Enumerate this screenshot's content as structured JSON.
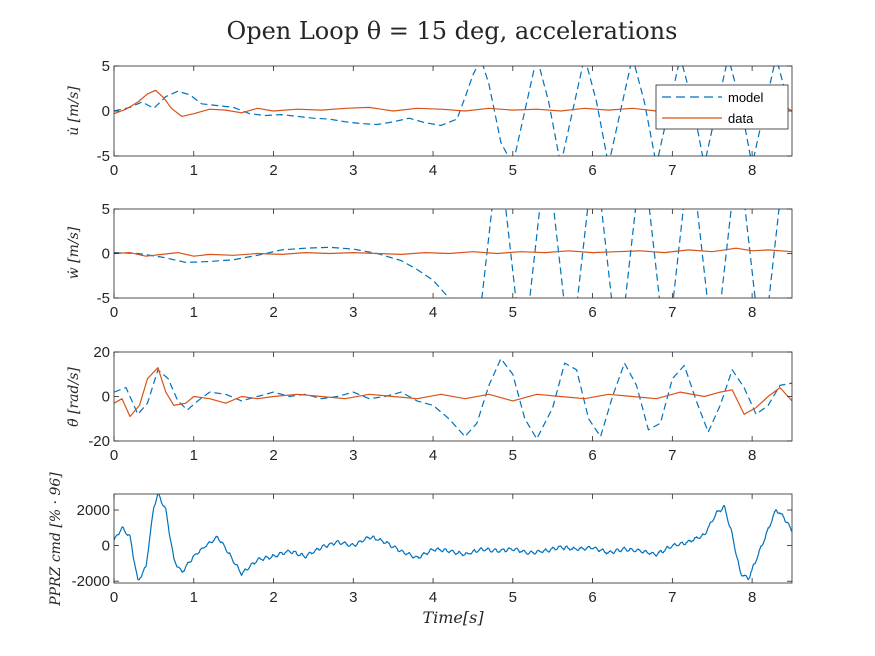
{
  "title": "Open Loop θ = 15 deg, accelerations",
  "colors": {
    "model": "#0072BD",
    "data": "#D95319",
    "cmd": "#0072BD",
    "axis": "#262626"
  },
  "chart_data": [
    {
      "type": "line",
      "ylabel": "u̇ [m/s]",
      "xlim": [
        0,
        8.5
      ],
      "ylim": [
        -5,
        5
      ],
      "xticks": [
        0,
        1,
        2,
        3,
        4,
        5,
        6,
        7,
        8
      ],
      "yticks": [
        -5,
        0,
        5
      ],
      "legend": {
        "position": "top-right",
        "entries": [
          "model",
          "data"
        ]
      },
      "series": [
        {
          "name": "model",
          "style": "dashed",
          "x": [
            0,
            0.2,
            0.35,
            0.5,
            0.65,
            0.8,
            0.95,
            1.1,
            1.3,
            1.5,
            1.7,
            1.9,
            2.1,
            2.3,
            2.5,
            2.7,
            2.9,
            3.1,
            3.3,
            3.5,
            3.7,
            3.9,
            4.1,
            4.3,
            4.4,
            4.5,
            4.6,
            4.7,
            4.85,
            5.0,
            5.15,
            5.3,
            5.45,
            5.6,
            5.75,
            5.9,
            6.05,
            6.2,
            6.35,
            6.5,
            6.65,
            6.8,
            6.95,
            7.1,
            7.25,
            7.4,
            7.55,
            7.7,
            7.85,
            8.0,
            8.15,
            8.3,
            8.45
          ],
          "y": [
            0,
            0.4,
            1.0,
            0.3,
            1.6,
            2.2,
            1.8,
            0.8,
            0.6,
            0.4,
            -0.3,
            -0.5,
            -0.4,
            -0.6,
            -0.8,
            -0.9,
            -1.2,
            -1.4,
            -1.5,
            -1.2,
            -0.8,
            -1.3,
            -1.6,
            -0.9,
            1.5,
            4.0,
            5.8,
            3.0,
            -3.5,
            -6.0,
            0.0,
            6.0,
            1.0,
            -6.0,
            0.0,
            6.0,
            1.0,
            -6.0,
            0.0,
            6.0,
            1.0,
            -6.0,
            0.0,
            6.0,
            1.0,
            -6.0,
            0.0,
            6.0,
            1.0,
            -6.0,
            0.0,
            6.0,
            1.0
          ]
        },
        {
          "name": "data",
          "style": "solid",
          "x": [
            0,
            0.15,
            0.3,
            0.42,
            0.52,
            0.62,
            0.72,
            0.85,
            1.0,
            1.2,
            1.4,
            1.6,
            1.8,
            2.0,
            2.3,
            2.6,
            2.9,
            3.2,
            3.5,
            3.8,
            4.1,
            4.4,
            4.7,
            5.0,
            5.3,
            5.6,
            5.9,
            6.2,
            6.5,
            6.8,
            7.1,
            7.4,
            7.7,
            8.0,
            8.2,
            8.35,
            8.5
          ],
          "y": [
            -0.3,
            0.2,
            1.0,
            1.9,
            2.3,
            1.5,
            0.3,
            -0.6,
            -0.3,
            0.2,
            0.1,
            -0.2,
            0.3,
            0.0,
            0.2,
            0.1,
            0.3,
            0.4,
            0.0,
            0.3,
            0.2,
            0.0,
            0.3,
            0.1,
            0.2,
            0.0,
            0.3,
            0.1,
            0.3,
            0.0,
            0.2,
            0.0,
            0.3,
            0.6,
            0.5,
            0.8,
            0.0
          ]
        }
      ]
    },
    {
      "type": "line",
      "ylabel": "ẇ [m/s]",
      "xlim": [
        0,
        8.5
      ],
      "ylim": [
        -5,
        5
      ],
      "xticks": [
        0,
        1,
        2,
        3,
        4,
        5,
        6,
        7,
        8
      ],
      "yticks": [
        -5,
        0,
        5
      ],
      "series": [
        {
          "name": "model",
          "style": "dashed",
          "x": [
            0,
            0.3,
            0.6,
            0.9,
            1.2,
            1.5,
            1.8,
            2.1,
            2.4,
            2.7,
            3.0,
            3.3,
            3.6,
            3.8,
            4.0,
            4.15,
            4.3,
            4.45,
            4.6,
            4.75,
            4.9,
            5.05,
            5.2,
            5.35,
            5.5,
            5.65,
            5.8,
            5.95,
            6.1,
            6.25,
            6.4,
            6.55,
            6.7,
            6.85,
            7.0,
            7.15,
            7.3,
            7.45,
            7.6,
            7.75,
            7.9,
            8.05,
            8.2,
            8.35,
            8.5
          ],
          "y": [
            0.1,
            0.0,
            -0.4,
            -1.0,
            -0.9,
            -0.7,
            -0.2,
            0.4,
            0.6,
            0.7,
            0.5,
            0.0,
            -0.8,
            -1.8,
            -3.0,
            -4.5,
            -6.0,
            -6.0,
            -6.0,
            6.0,
            6.0,
            -6.0,
            -6.0,
            6.0,
            6.0,
            -6.0,
            -6.0,
            6.0,
            6.0,
            -6.0,
            -6.0,
            6.0,
            6.0,
            -6.0,
            -6.0,
            6.0,
            6.0,
            -6.0,
            -6.0,
            6.0,
            6.0,
            -6.0,
            -6.0,
            6.0,
            6.0
          ]
        },
        {
          "name": "data",
          "style": "solid",
          "x": [
            0,
            0.2,
            0.4,
            0.6,
            0.8,
            1.0,
            1.2,
            1.5,
            1.8,
            2.1,
            2.4,
            2.7,
            3.0,
            3.3,
            3.6,
            3.9,
            4.2,
            4.5,
            4.8,
            5.1,
            5.4,
            5.7,
            6.0,
            6.3,
            6.6,
            6.9,
            7.2,
            7.5,
            7.8,
            8.0,
            8.2,
            8.5
          ],
          "y": [
            0.0,
            0.1,
            -0.3,
            -0.1,
            0.1,
            -0.3,
            -0.1,
            -0.2,
            0.0,
            -0.1,
            0.1,
            0.0,
            0.1,
            0.0,
            -0.1,
            0.1,
            0.0,
            0.2,
            0.0,
            0.2,
            0.1,
            0.3,
            0.1,
            0.2,
            0.3,
            0.1,
            0.4,
            0.2,
            0.6,
            0.3,
            0.4,
            0.2
          ]
        }
      ]
    },
    {
      "type": "line",
      "ylabel": "θ̈ [rad/s]",
      "xlim": [
        0,
        8.5
      ],
      "ylim": [
        -20,
        20
      ],
      "xticks": [
        0,
        1,
        2,
        3,
        4,
        5,
        6,
        7,
        8
      ],
      "yticks": [
        -20,
        0,
        20
      ],
      "series": [
        {
          "name": "model",
          "style": "dashed",
          "x": [
            0,
            0.15,
            0.3,
            0.42,
            0.55,
            0.68,
            0.8,
            0.92,
            1.05,
            1.2,
            1.4,
            1.6,
            1.8,
            2.0,
            2.2,
            2.4,
            2.6,
            2.8,
            3.0,
            3.2,
            3.4,
            3.6,
            3.8,
            4.0,
            4.2,
            4.4,
            4.55,
            4.7,
            4.85,
            5.0,
            5.15,
            5.3,
            5.5,
            5.65,
            5.8,
            5.95,
            6.1,
            6.25,
            6.4,
            6.55,
            6.7,
            6.85,
            7.0,
            7.15,
            7.3,
            7.45,
            7.6,
            7.75,
            7.9,
            8.05,
            8.2,
            8.35,
            8.5
          ],
          "y": [
            2,
            4,
            -8,
            -3,
            12,
            8,
            -2,
            -6,
            -2,
            2,
            1,
            -2,
            0,
            2,
            0,
            1,
            -1,
            0,
            2,
            -1,
            0,
            2,
            -2,
            -4,
            -10,
            -18,
            -12,
            5,
            17,
            10,
            -10,
            -19,
            -5,
            15,
            12,
            -10,
            -18,
            0,
            15,
            5,
            -15,
            -12,
            8,
            14,
            -2,
            -16,
            -4,
            12,
            4,
            -8,
            -4,
            5,
            6
          ]
        },
        {
          "name": "data",
          "style": "solid",
          "x": [
            0,
            0.1,
            0.2,
            0.32,
            0.42,
            0.55,
            0.65,
            0.75,
            0.9,
            1.0,
            1.2,
            1.4,
            1.6,
            1.8,
            2.0,
            2.3,
            2.6,
            2.9,
            3.2,
            3.5,
            3.8,
            4.1,
            4.4,
            4.7,
            5.0,
            5.3,
            5.6,
            5.9,
            6.2,
            6.5,
            6.8,
            7.1,
            7.4,
            7.6,
            7.75,
            7.9,
            8.05,
            8.2,
            8.35,
            8.5
          ],
          "y": [
            -3,
            -1,
            -9,
            -4,
            8,
            13,
            2,
            -4,
            -3,
            0,
            -1,
            -3,
            0,
            -1,
            0,
            1,
            0,
            -1,
            1,
            0,
            -1,
            1,
            -1,
            1,
            -2,
            1,
            0,
            -1,
            1,
            0,
            -1,
            2,
            0,
            2,
            3,
            -8,
            -5,
            0,
            4,
            -2
          ]
        }
      ]
    },
    {
      "type": "line",
      "ylabel": "PPRZ cmd [% · 96]",
      "xlabel": "Time[s]",
      "xlim": [
        0,
        8.5
      ],
      "ylim": [
        -2100,
        2900
      ],
      "xticks": [
        0,
        1,
        2,
        3,
        4,
        5,
        6,
        7,
        8
      ],
      "yticks": [
        -2000,
        0,
        2000
      ],
      "series": [
        {
          "name": "cmd",
          "style": "solid",
          "noise_amplitude": 120,
          "x": [
            0,
            0.1,
            0.2,
            0.3,
            0.4,
            0.5,
            0.55,
            0.65,
            0.75,
            0.85,
            1.0,
            1.15,
            1.3,
            1.45,
            1.6,
            1.8,
            2.0,
            2.2,
            2.4,
            2.6,
            2.8,
            3.0,
            3.2,
            3.4,
            3.6,
            3.8,
            4.0,
            4.2,
            4.4,
            4.6,
            4.8,
            5.0,
            5.2,
            5.4,
            5.6,
            5.8,
            6.0,
            6.2,
            6.4,
            6.6,
            6.8,
            7.0,
            7.2,
            7.4,
            7.55,
            7.65,
            7.75,
            7.85,
            7.95,
            8.05,
            8.2,
            8.3,
            8.4,
            8.5
          ],
          "y": [
            300,
            1000,
            500,
            -2000,
            -1200,
            2200,
            2900,
            2000,
            -800,
            -1500,
            -600,
            0,
            500,
            -500,
            -1600,
            -800,
            -600,
            -300,
            -600,
            -100,
            200,
            0,
            500,
            200,
            -300,
            -700,
            -200,
            -300,
            -500,
            -200,
            -300,
            -200,
            -400,
            -300,
            -100,
            -200,
            -100,
            -400,
            -200,
            -300,
            -500,
            0,
            200,
            600,
            1800,
            2200,
            600,
            -1500,
            -1900,
            -800,
            900,
            2000,
            1600,
            800
          ]
        }
      ]
    }
  ]
}
